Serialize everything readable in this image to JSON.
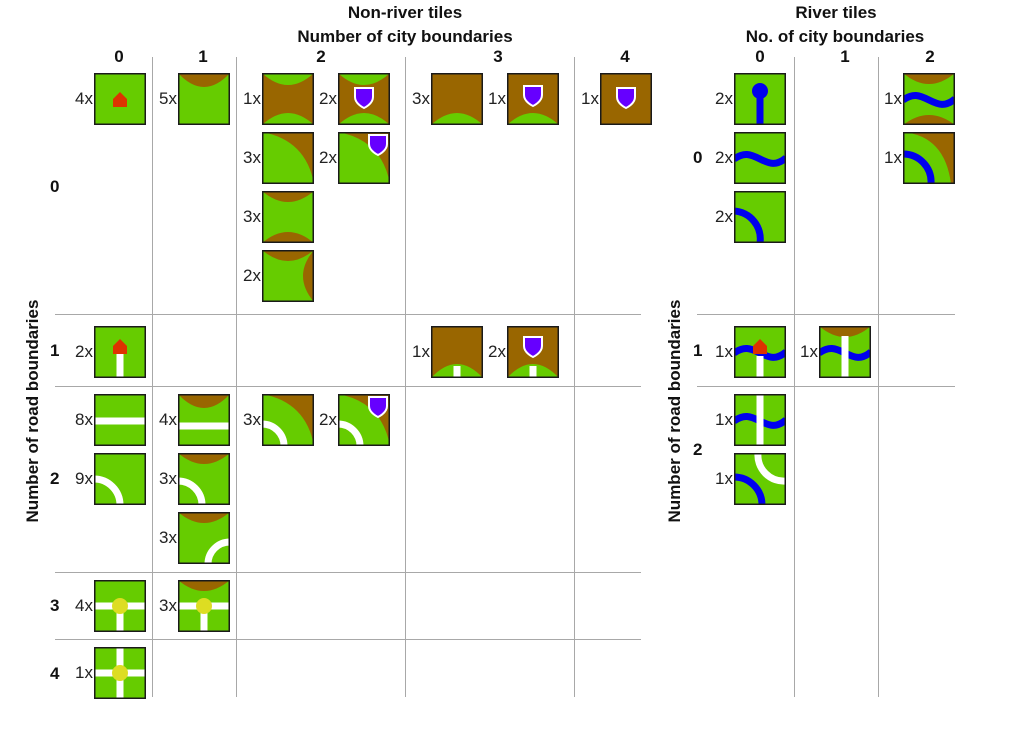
{
  "colors": {
    "field": "#66cc00",
    "city": "#996600",
    "road": "#ffffff",
    "river": "#0000ee",
    "monastery": "#dd3300",
    "shield": "#6600ff",
    "crossing": "#dddd22",
    "grid": "#a8a8a8"
  },
  "non_river": {
    "title": "Non-river tiles",
    "subtitle": "Number of city boundaries",
    "col_labels": [
      "0",
      "1",
      "2",
      "3",
      "4"
    ],
    "row_labels": [
      "0",
      "1",
      "2",
      "3",
      "4"
    ],
    "y_axis_label": "Number of road boundaries",
    "tiles": [
      {
        "count": "4x",
        "type": "monastery",
        "icon": "monastery-icon"
      },
      {
        "count": "5x",
        "type": "city-cap-top"
      },
      {
        "count": "1x",
        "type": "city-band"
      },
      {
        "count": "2x",
        "type": "city-band-shield",
        "icon": "shield-icon"
      },
      {
        "count": "3x",
        "type": "city-corner"
      },
      {
        "count": "2x",
        "type": "city-corner-shield",
        "icon": "shield-icon"
      },
      {
        "count": "3x",
        "type": "city-caps-opposite"
      },
      {
        "count": "2x",
        "type": "city-caps-adjacent"
      },
      {
        "count": "3x",
        "type": "city-three"
      },
      {
        "count": "1x",
        "type": "city-three-shield",
        "icon": "shield-icon"
      },
      {
        "count": "1x",
        "type": "city-four-shield",
        "icon": "shield-icon"
      },
      {
        "count": "2x",
        "type": "monastery-road",
        "icon": "monastery-icon"
      },
      {
        "count": "1x",
        "type": "city-three-road"
      },
      {
        "count": "2x",
        "type": "city-three-road-shield",
        "icon": "shield-icon"
      },
      {
        "count": "8x",
        "type": "road-straight"
      },
      {
        "count": "4x",
        "type": "city-cap-road-straight"
      },
      {
        "count": "3x",
        "type": "city-corner-road-curve"
      },
      {
        "count": "2x",
        "type": "city-corner-road-curve-shield",
        "icon": "shield-icon"
      },
      {
        "count": "9x",
        "type": "road-curve"
      },
      {
        "count": "3x",
        "type": "city-cap-road-curve-left"
      },
      {
        "count": "3x",
        "type": "city-cap-road-curve-right"
      },
      {
        "count": "4x",
        "type": "road-t-junction",
        "icon": "crossing-icon"
      },
      {
        "count": "3x",
        "type": "city-cap-road-t-junction",
        "icon": "crossing-icon"
      },
      {
        "count": "1x",
        "type": "road-crossroads",
        "icon": "crossing-icon"
      }
    ]
  },
  "river": {
    "title": "River tiles",
    "subtitle": "No. of city boundaries",
    "col_labels": [
      "0",
      "1",
      "2"
    ],
    "row_labels": [
      "0",
      "1",
      "2"
    ],
    "y_axis_label": "Number of road boundaries",
    "tiles": [
      {
        "count": "2x",
        "type": "river-source",
        "icon": "river-source-icon"
      },
      {
        "count": "2x",
        "type": "river-straight"
      },
      {
        "count": "2x",
        "type": "river-curve"
      },
      {
        "count": "1x",
        "type": "river-city-band"
      },
      {
        "count": "1x",
        "type": "river-city-corner"
      },
      {
        "count": "1x",
        "type": "river-monastery-road",
        "icon": "monastery-icon"
      },
      {
        "count": "1x",
        "type": "river-city-cap-road"
      },
      {
        "count": "1x",
        "type": "river-road-bridge"
      },
      {
        "count": "1x",
        "type": "river-curve-road-curve"
      }
    ]
  }
}
